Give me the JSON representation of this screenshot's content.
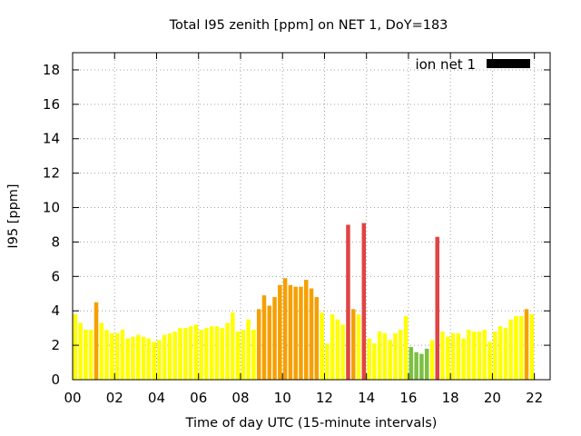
{
  "chart_data": {
    "type": "bar",
    "title": "Total I95 zenith [ppm] on NET 1, DoY=183",
    "xlabel": "Time of day UTC (15-minute intervals)",
    "ylabel": "I95 [ppm]",
    "xlim": [
      0,
      22.75
    ],
    "ylim": [
      0,
      19
    ],
    "x_ticks": [
      0,
      2,
      4,
      6,
      8,
      10,
      12,
      14,
      16,
      18,
      20,
      22
    ],
    "x_tick_labels": [
      "00",
      "02",
      "04",
      "06",
      "08",
      "10",
      "12",
      "14",
      "16",
      "18",
      "20",
      "22"
    ],
    "y_ticks": [
      0,
      2,
      4,
      6,
      8,
      10,
      12,
      14,
      16,
      18
    ],
    "y_tick_labels": [
      "0",
      "2",
      "4",
      "6",
      "8",
      "10",
      "12",
      "14",
      "16",
      "18"
    ],
    "grid": true,
    "bar_interval_hours": 0.25,
    "legend": {
      "position": "top-right",
      "label": "ion net 1",
      "color": "#000000"
    },
    "level_colors": {
      "green": "#7cbf42",
      "yellow": "#ffff00",
      "orange": "#f5a000",
      "red": "#e04444"
    },
    "values": [
      3.8,
      3.3,
      2.9,
      2.9,
      4.5,
      3.3,
      2.9,
      2.7,
      2.7,
      2.9,
      2.4,
      2.5,
      2.6,
      2.5,
      2.4,
      2.2,
      2.3,
      2.6,
      2.7,
      2.8,
      3.0,
      3.0,
      3.1,
      3.2,
      2.9,
      3.0,
      3.1,
      3.1,
      3.0,
      3.3,
      3.9,
      2.8,
      2.9,
      3.5,
      2.9,
      4.1,
      4.9,
      4.3,
      4.8,
      5.5,
      5.9,
      5.5,
      5.4,
      5.4,
      5.8,
      5.3,
      4.8,
      3.9,
      2.1,
      3.8,
      3.5,
      3.2,
      9.0,
      4.1,
      3.8,
      9.1,
      2.4,
      2.1,
      2.8,
      2.7,
      2.3,
      2.7,
      2.9,
      3.7,
      1.9,
      1.6,
      1.5,
      1.8,
      2.3,
      8.3,
      2.8,
      2.5,
      2.7,
      2.7,
      2.4,
      2.9,
      2.8,
      2.8,
      2.9,
      2.2,
      2.8,
      3.1,
      3.0,
      3.5,
      3.7,
      3.7,
      4.1,
      3.8
    ],
    "levels": [
      "yellow",
      "yellow",
      "yellow",
      "yellow",
      "orange",
      "yellow",
      "yellow",
      "yellow",
      "yellow",
      "yellow",
      "yellow",
      "yellow",
      "yellow",
      "yellow",
      "yellow",
      "yellow",
      "yellow",
      "yellow",
      "yellow",
      "yellow",
      "yellow",
      "yellow",
      "yellow",
      "yellow",
      "yellow",
      "yellow",
      "yellow",
      "yellow",
      "yellow",
      "yellow",
      "yellow",
      "yellow",
      "yellow",
      "yellow",
      "yellow",
      "orange",
      "orange",
      "orange",
      "orange",
      "orange",
      "orange",
      "orange",
      "orange",
      "orange",
      "orange",
      "orange",
      "orange",
      "yellow",
      "yellow",
      "yellow",
      "yellow",
      "yellow",
      "red",
      "orange",
      "yellow",
      "red",
      "yellow",
      "yellow",
      "yellow",
      "yellow",
      "yellow",
      "yellow",
      "yellow",
      "yellow",
      "green",
      "green",
      "green",
      "green",
      "yellow",
      "red",
      "yellow",
      "yellow",
      "yellow",
      "yellow",
      "yellow",
      "yellow",
      "yellow",
      "yellow",
      "yellow",
      "yellow",
      "yellow",
      "yellow",
      "yellow",
      "yellow",
      "yellow",
      "yellow",
      "orange",
      "yellow"
    ]
  }
}
